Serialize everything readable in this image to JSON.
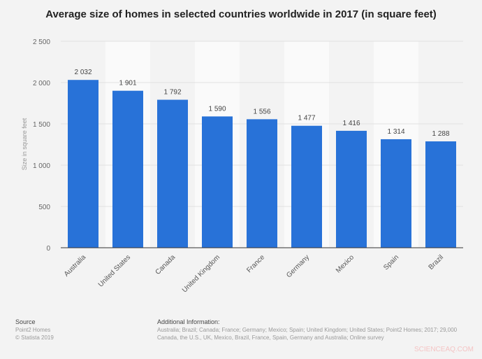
{
  "chart_data": {
    "type": "bar",
    "title": "Average size of homes in selected countries worldwide in 2017 (in square feet)",
    "xlabel": "",
    "ylabel": "Size in square feet",
    "ylim": [
      0,
      2500
    ],
    "yticks": [
      0,
      500,
      1000,
      1500,
      2000,
      2500
    ],
    "ytick_labels": [
      "0",
      "500",
      "1 000",
      "1 500",
      "2 000",
      "2 500"
    ],
    "grid": true,
    "categories": [
      "Australia",
      "United States",
      "Canada",
      "United Kingdom",
      "France",
      "Germany",
      "Mexico",
      "Spain",
      "Brazil"
    ],
    "values": [
      2032,
      1901,
      1792,
      1590,
      1556,
      1477,
      1416,
      1314,
      1288
    ],
    "value_labels": [
      "2 032",
      "1 901",
      "1 792",
      "1 590",
      "1 556",
      "1 477",
      "1 416",
      "1 314",
      "1 288"
    ],
    "bar_color": "#2872d8"
  },
  "footer": {
    "source_heading": "Source",
    "source_lines": [
      "Point2 Homes",
      "© Statista 2019"
    ],
    "info_heading": "Additional Information:",
    "info_lines": [
      "Australia; Brazil; Canada; France; Germany; Mexico; Spain; United Kingdom; United States; Point2 Homes; 2017; 29,000",
      "Canada, the U.S., UK, Mexico, Brazil, France, Spain, Germany and Australia; Online survey"
    ]
  },
  "watermark": "SCIENCEAQ.COM"
}
